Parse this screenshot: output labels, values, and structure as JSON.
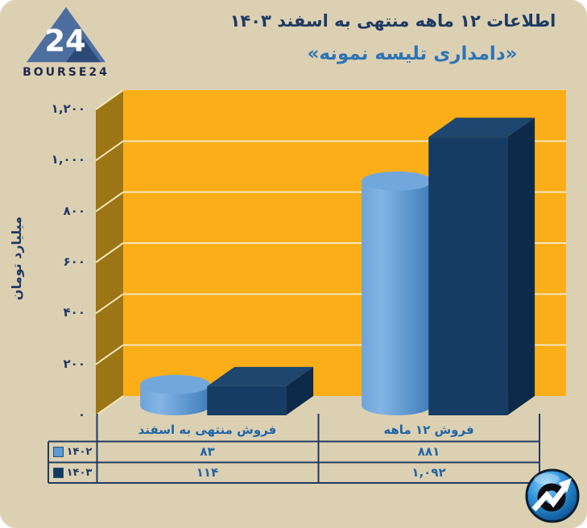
{
  "brand": {
    "logo_number": "24",
    "logo_text": "BOURSE24"
  },
  "chart_data": {
    "type": "bar",
    "projection": "3d-clustered",
    "title": "اطلاعات ۱۲ ماهه منتهی به اسفند ۱۴۰۳",
    "subtitle": "«دامداری تلیسه نمونه»",
    "ylabel": "میلیارد تومان",
    "ylim": [
      0,
      1200
    ],
    "ytick_values": [
      0,
      200,
      400,
      600,
      800,
      1000,
      1200
    ],
    "ytick_labels": [
      "۰",
      "۲۰۰",
      "۴۰۰",
      "۶۰۰",
      "۸۰۰",
      "۱,۰۰۰",
      "۱,۲۰۰"
    ],
    "categories": [
      "فروش منتهی به  اسفند",
      "فروش ۱۲  ماهه"
    ],
    "series": [
      {
        "name": "۱۴۰۲",
        "shape": "cylinder",
        "color": "#5B9BD5",
        "values": [
          83,
          881
        ],
        "value_labels": [
          "۸۳",
          "۸۸۱"
        ]
      },
      {
        "name": "۱۴۰۳",
        "shape": "box",
        "color": "#17395F",
        "values": [
          114,
          1092
        ],
        "value_labels": [
          "۱۱۴",
          "۱,۰۹۲"
        ]
      }
    ],
    "grid": true,
    "legend_position": "table-left",
    "plot_bg": "#FBAE17",
    "wall_color": "#9C7614",
    "grid_color": "#F5E6BE"
  },
  "colors": {
    "card_bg": "#DCD0B3",
    "title_text": "#1F3A63",
    "subtitle_text": "#2E74B5",
    "axis_text": "#1F3A63",
    "table_text": "#2065A8",
    "table_border": "#1F3A5F",
    "cylinder_blue": "#5B9BD5",
    "box_navy": "#17395F"
  }
}
